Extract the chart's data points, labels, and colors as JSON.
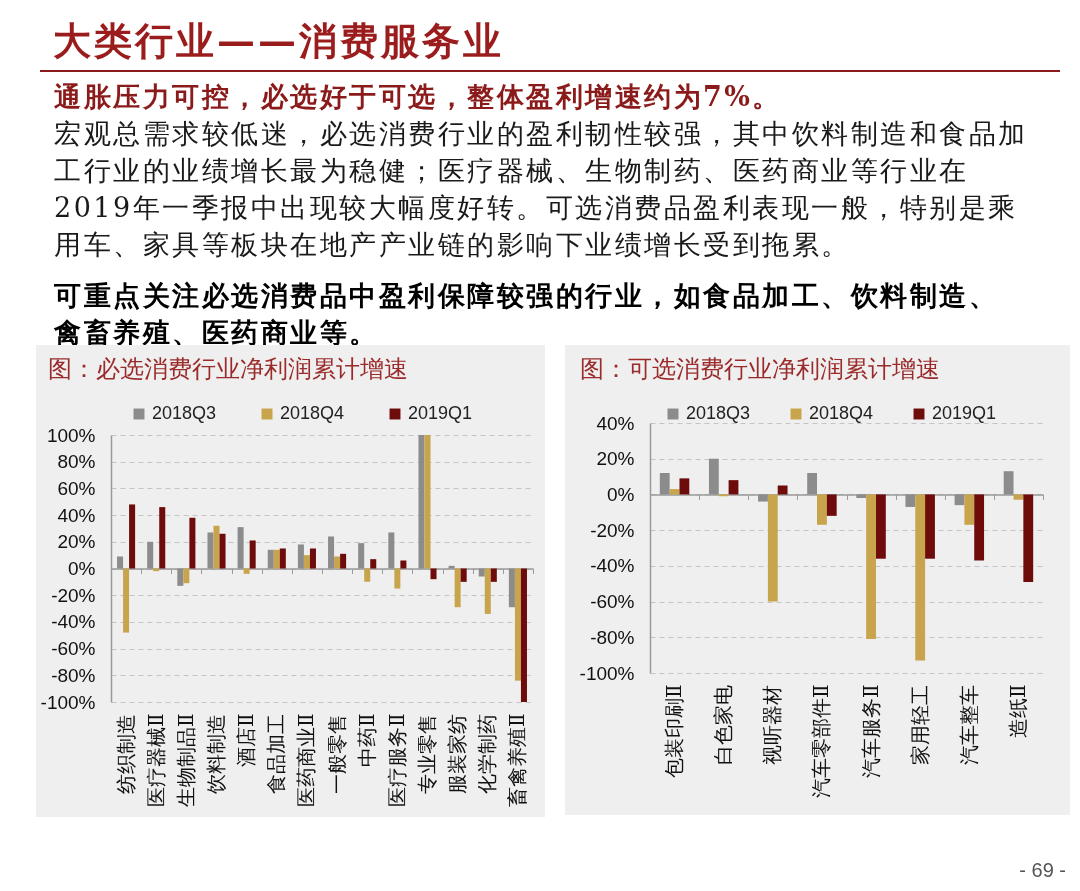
{
  "chart_data": [
    {
      "type": "other",
      "title": "大类行业——消费服务业",
      "annotations": [
        "通胀压力可控，必选好于可选，整体盈利增速约为7%。",
        "宏观总需求较低迷，必选消费行业的盈利韧性较强，其中饮料制造和食品加工行业的业绩增长最为稳健；医疗器械、生物制药、医药商业等行业在2019年一季报中出现较大幅度好转。可选消费品盈利表现一般，特别是乘用车、家具等板块在地产产业链的影响下业绩增长受到拖累。",
        "可重点关注必选消费品中盈利保障较强的行业，如食品加工、饮料制造、禽畜养殖、医药商业等。",
        "- 69 -"
      ]
    },
    {
      "type": "bar",
      "title": "图：必选消费行业净利润累计增速",
      "categories": [
        "纺织制造",
        "医疗器械Ⅱ",
        "生物制品Ⅱ",
        "饮料制造",
        "酒店Ⅱ",
        "食品加工",
        "医药商业Ⅱ",
        "一般零售",
        "中药Ⅱ",
        "医疗服务Ⅱ",
        "专业零售",
        "服装家纺",
        "化学制药",
        "畜禽养殖Ⅱ"
      ],
      "series": [
        {
          "name": "2018Q3",
          "color": "#8c8c8c",
          "values": [
            9,
            20,
            -13,
            27,
            31,
            14,
            18,
            24,
            19,
            27,
            100,
            2,
            -6,
            -29
          ]
        },
        {
          "name": "2018Q4",
          "color": "#c8a44c",
          "values": [
            -48,
            -2,
            -11,
            32,
            -4,
            14,
            10,
            9,
            -10,
            -15,
            100,
            -29,
            -34,
            -84
          ]
        },
        {
          "name": "2019Q1",
          "color": "#6e0c0c",
          "values": [
            48,
            46,
            38,
            26,
            21,
            15,
            15,
            11,
            7,
            6,
            -8,
            -10,
            -10,
            -100
          ]
        }
      ],
      "ylim": [
        -100,
        100
      ],
      "yticks": [
        {
          "value": -100,
          "label": "-100%"
        },
        {
          "value": -80,
          "label": "-80%"
        },
        {
          "value": -60,
          "label": "-60%"
        },
        {
          "value": -40,
          "label": "-40%"
        },
        {
          "value": -20,
          "label": "-20%"
        },
        {
          "value": 0,
          "label": "0%"
        },
        {
          "value": 20,
          "label": "20%"
        },
        {
          "value": 40,
          "label": "40%"
        },
        {
          "value": 60,
          "label": "60%"
        },
        {
          "value": 80,
          "label": "80%"
        },
        {
          "value": 100,
          "label": "100%"
        }
      ],
      "grid": "y",
      "legend": "top"
    },
    {
      "type": "bar",
      "title": "图：可选消费行业净利润累计增速",
      "categories": [
        "包装印刷Ⅱ",
        "白色家电",
        "视听器材",
        "汽车零部件Ⅱ",
        "汽车服务Ⅱ",
        "家用轻工",
        "汽车整车",
        "造纸Ⅱ"
      ],
      "series": [
        {
          "name": "2018Q3",
          "color": "#8c8c8c",
          "values": [
            12,
            20,
            -4,
            12,
            -2,
            -7,
            -6,
            13
          ]
        },
        {
          "name": "2018Q4",
          "color": "#c8a44c",
          "values": [
            3,
            -1,
            -60,
            -17,
            -81,
            -93,
            -17,
            -3
          ]
        },
        {
          "name": "2019Q1",
          "color": "#6e0c0c",
          "values": [
            9,
            8,
            5,
            -12,
            -36,
            -36,
            -37,
            -49
          ]
        }
      ],
      "ylim": [
        -100,
        40
      ],
      "yticks": [
        {
          "value": -100,
          "label": "-100%"
        },
        {
          "value": -80,
          "label": "-80%"
        },
        {
          "value": -60,
          "label": "-60%"
        },
        {
          "value": -40,
          "label": "-40%"
        },
        {
          "value": -20,
          "label": "-20%"
        },
        {
          "value": 0,
          "label": "0%"
        },
        {
          "value": 20,
          "label": "20%"
        },
        {
          "value": 40,
          "label": "40%"
        }
      ],
      "grid": "y",
      "legend": "top"
    }
  ]
}
